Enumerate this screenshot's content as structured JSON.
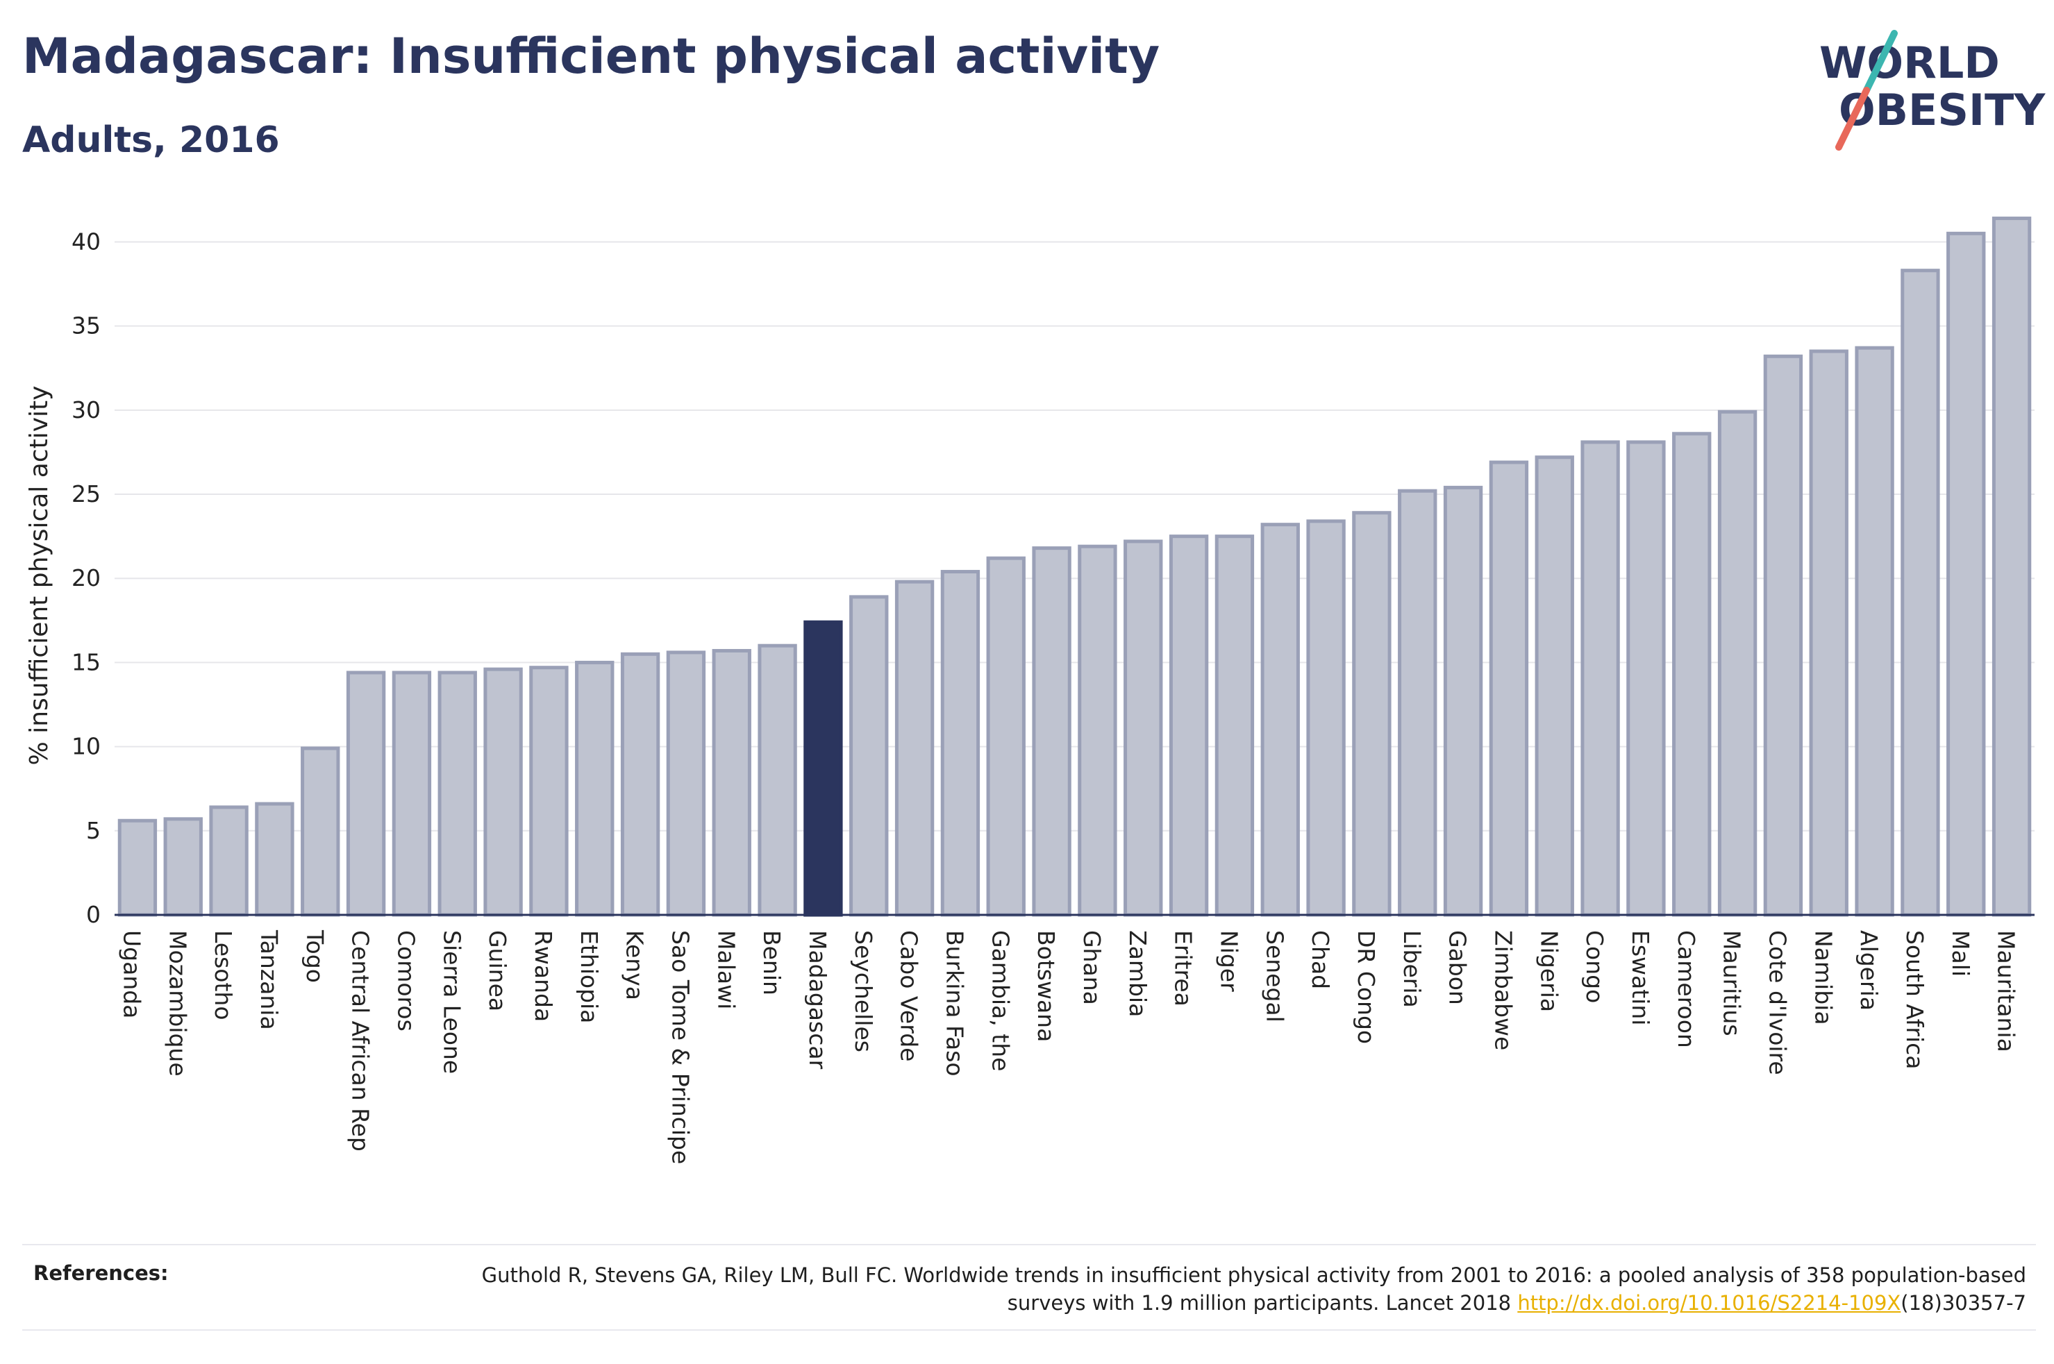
{
  "header": {
    "title": "Madagascar: Insufficient physical activity",
    "subtitle": "Adults, 2016"
  },
  "logo": {
    "line1": "WORLD",
    "line2": "OBESITY",
    "colors": {
      "text": "#2b355e",
      "slash_teal": "#3cb6b0",
      "slash_red": "#e8685a"
    }
  },
  "references": {
    "label": "References:",
    "text_before_link": "Guthold R, Stevens GA, Riley LM, Bull FC. Worldwide trends in insufficient physical activity from 2001 to 2016: a pooled analysis of 358 population-based surveys with 1.9 million participants. Lancet 2018 ",
    "link": "http://dx.doi.org/10.1016/S2214-109X",
    "text_after_link": "(18)30357-7"
  },
  "chart_data": {
    "type": "bar",
    "title": "Madagascar: Insufficient physical activity",
    "subtitle": "Adults, 2016",
    "xlabel": "",
    "ylabel": "% insufficient physical activity",
    "ylim": [
      0,
      42
    ],
    "yticks": [
      0,
      5,
      10,
      15,
      20,
      25,
      30,
      35,
      40
    ],
    "grid": true,
    "highlight": "Madagascar",
    "colors": {
      "bar": "#bfc3d0",
      "bar_edge": "#9aa0b7",
      "highlight": "#2b355e",
      "grid": "#e6e6ea",
      "axis": "#2b355e"
    },
    "categories": [
      "Uganda",
      "Mozambique",
      "Lesotho",
      "Tanzania",
      "Togo",
      "Central African Rep",
      "Comoros",
      "Sierra Leone",
      "Guinea",
      "Rwanda",
      "Ethiopia",
      "Kenya",
      "Sao Tome & Principe",
      "Malawi",
      "Benin",
      "Madagascar",
      "Seychelles",
      "Cabo Verde",
      "Burkina Faso",
      "Gambia, the",
      "Botswana",
      "Ghana",
      "Zambia",
      "Eritrea",
      "Niger",
      "Senegal",
      "Chad",
      "DR Congo",
      "Liberia",
      "Gabon",
      "Zimbabwe",
      "Nigeria",
      "Congo",
      "Eswatini",
      "Cameroon",
      "Mauritius",
      "Cote d'Ivoire",
      "Namibia",
      "Algeria",
      "South Africa",
      "Mali",
      "Mauritania"
    ],
    "values": [
      5.6,
      5.7,
      6.4,
      6.6,
      9.9,
      14.4,
      14.4,
      14.4,
      14.6,
      14.7,
      15.0,
      15.5,
      15.6,
      15.7,
      16.0,
      17.4,
      18.9,
      19.8,
      20.4,
      21.2,
      21.8,
      21.9,
      22.2,
      22.5,
      22.5,
      23.2,
      23.4,
      23.9,
      25.2,
      25.4,
      26.9,
      27.2,
      28.1,
      28.1,
      28.6,
      29.9,
      33.2,
      33.5,
      33.7,
      38.3,
      40.5,
      41.4
    ]
  }
}
